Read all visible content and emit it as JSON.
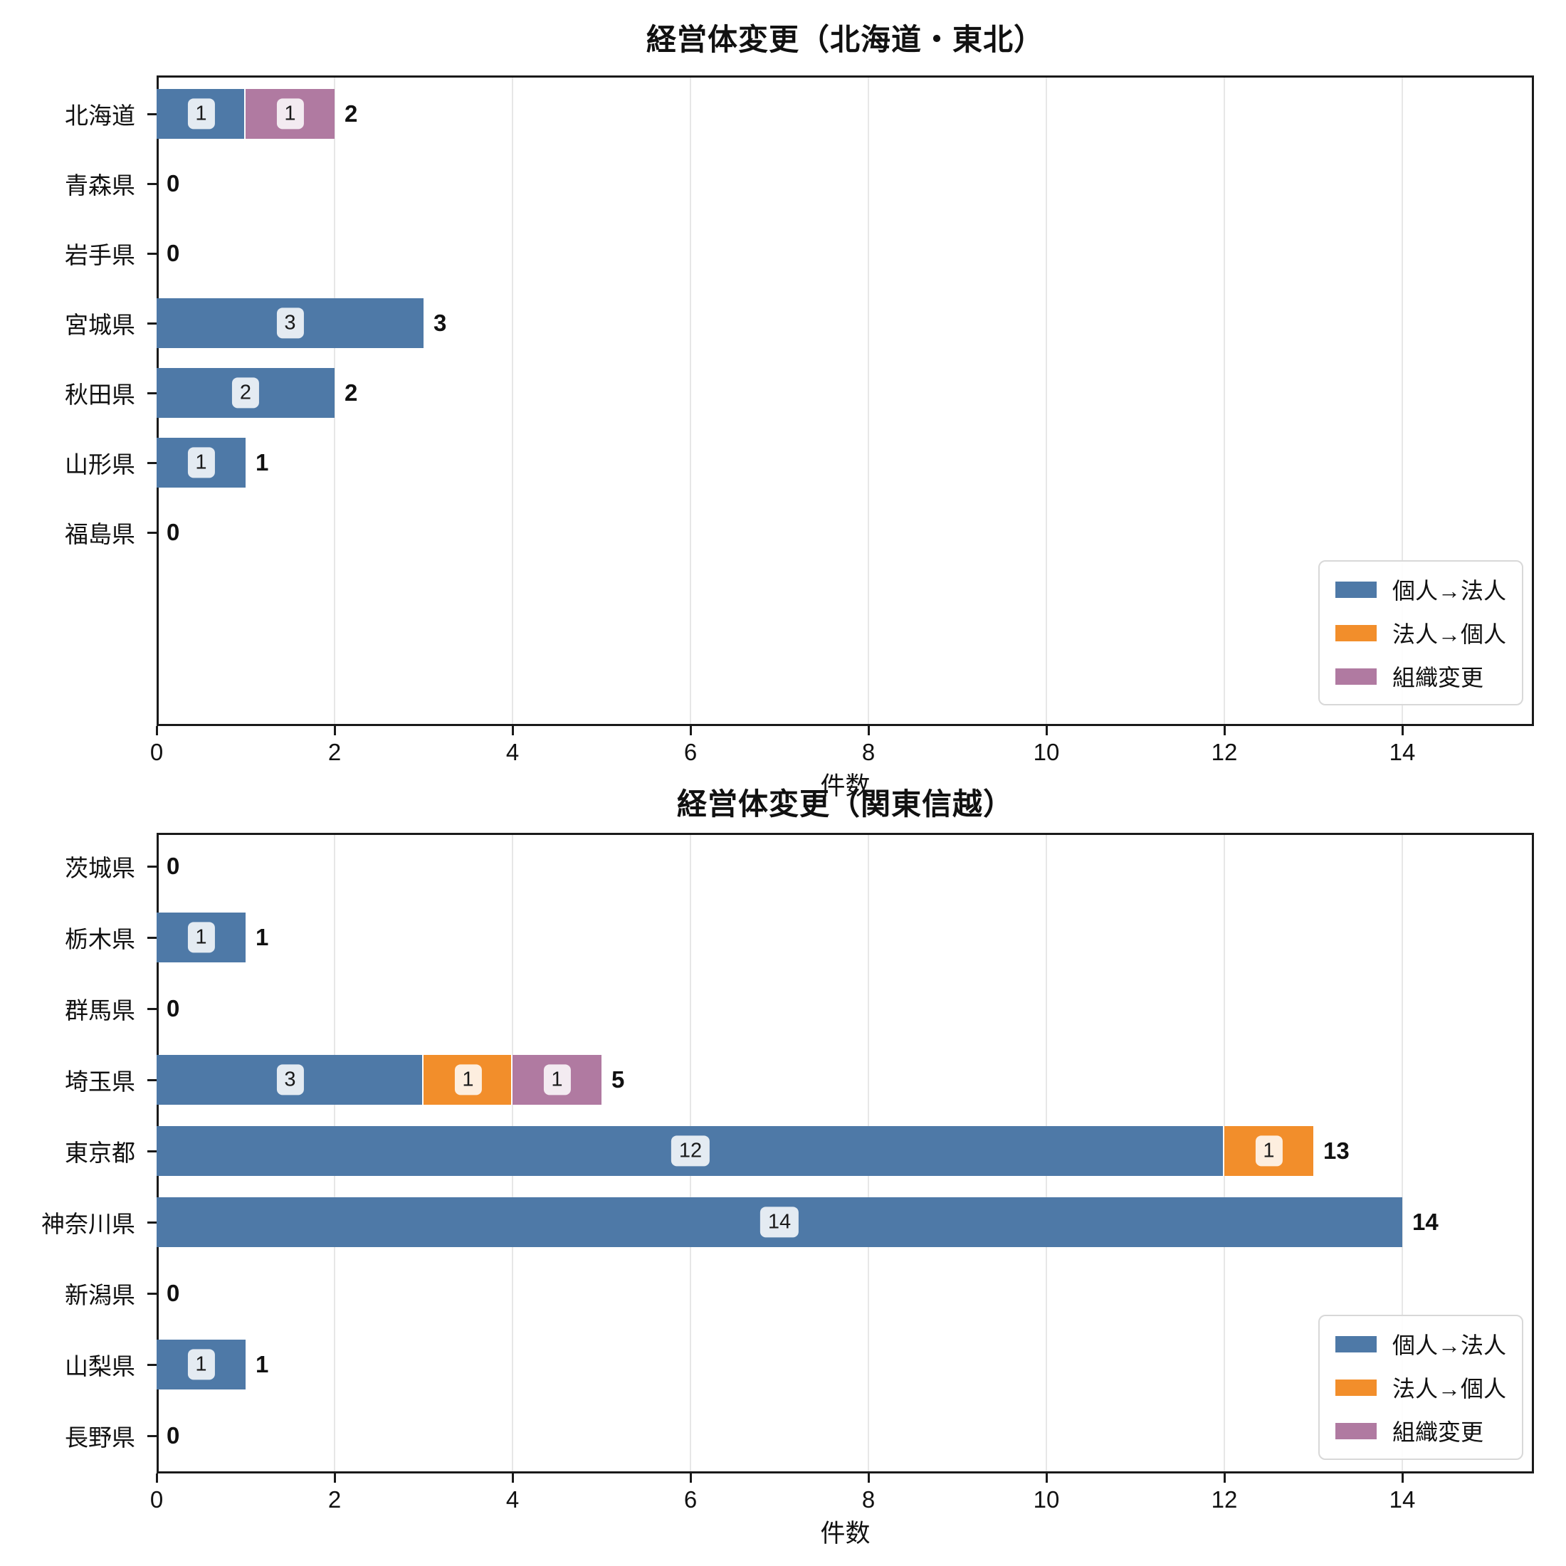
{
  "page": {
    "background": "#ffffff"
  },
  "colors": {
    "kojin_to_hojin": "#4E79A7",
    "hojin_to_kojin": "#F28E2B",
    "soshiki_henko": "#B07AA1",
    "grid": "#e7e7e7",
    "spine": "#1a1a1a",
    "chip_bg": "rgba(255,255,255,0.85)"
  },
  "legend": {
    "items": [
      {
        "label": "個人→法人",
        "color": "#4E79A7"
      },
      {
        "label": "法人→個人",
        "color": "#F28E2B"
      },
      {
        "label": "組織変更",
        "color": "#B07AA1"
      }
    ]
  },
  "chart_data": [
    {
      "type": "bar",
      "orientation": "horizontal",
      "stacked": true,
      "title": "経営体変更（北海道・東北）",
      "xlabel": "件数",
      "xlim": [
        0,
        15.5
      ],
      "xticks": [
        0,
        2,
        4,
        6,
        8,
        10,
        12,
        14
      ],
      "grid": true,
      "legend_position": "lower right",
      "categories": [
        "北海道",
        "青森県",
        "岩手県",
        "宮城県",
        "秋田県",
        "山形県",
        "福島県"
      ],
      "series": [
        {
          "name": "個人→法人",
          "color": "#4E79A7",
          "values": [
            1,
            0,
            0,
            3,
            2,
            1,
            0
          ]
        },
        {
          "name": "法人→個人",
          "color": "#F28E2B",
          "values": [
            0,
            0,
            0,
            0,
            0,
            0,
            0
          ]
        },
        {
          "name": "組織変更",
          "color": "#B07AA1",
          "values": [
            1,
            0,
            0,
            0,
            0,
            0,
            0
          ]
        }
      ],
      "totals": [
        2,
        0,
        0,
        3,
        2,
        1,
        0
      ]
    },
    {
      "type": "bar",
      "orientation": "horizontal",
      "stacked": true,
      "title": "経営体変更（関東信越）",
      "xlabel": "件数",
      "xlim": [
        0,
        15.5
      ],
      "xticks": [
        0,
        2,
        4,
        6,
        8,
        10,
        12,
        14
      ],
      "grid": true,
      "legend_position": "lower right",
      "categories": [
        "茨城県",
        "栃木県",
        "群馬県",
        "埼玉県",
        "東京都",
        "神奈川県",
        "新潟県",
        "山梨県",
        "長野県"
      ],
      "series": [
        {
          "name": "個人→法人",
          "color": "#4E79A7",
          "values": [
            0,
            1,
            0,
            3,
            12,
            14,
            0,
            1,
            0
          ]
        },
        {
          "name": "法人→個人",
          "color": "#F28E2B",
          "values": [
            0,
            0,
            0,
            1,
            1,
            0,
            0,
            0,
            0
          ]
        },
        {
          "name": "組織変更",
          "color": "#B07AA1",
          "values": [
            0,
            0,
            0,
            1,
            0,
            0,
            0,
            0,
            0
          ]
        }
      ],
      "totals": [
        0,
        1,
        0,
        5,
        13,
        14,
        0,
        1,
        0
      ]
    }
  ]
}
